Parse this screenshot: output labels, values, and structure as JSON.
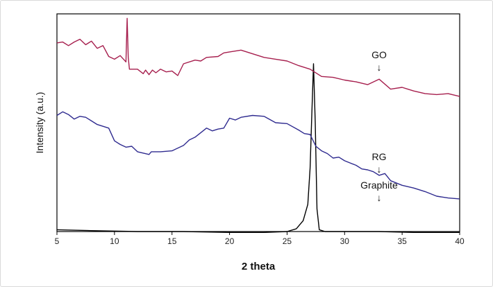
{
  "chart_data": {
    "type": "line",
    "title": "",
    "xlabel": "2 theta",
    "ylabel": "Intensity (a.u.)",
    "xlim": [
      5,
      40
    ],
    "xticks": [
      5,
      10,
      15,
      20,
      25,
      30,
      35,
      40
    ],
    "grid": false,
    "legend": "inline-annotations",
    "series": [
      {
        "name": "Graphite",
        "color": "#000000",
        "arrow": "↓",
        "label_x": 33,
        "x": [
          5,
          8,
          12,
          16,
          20,
          23,
          25,
          25.8,
          26.4,
          26.8,
          27.0,
          27.15,
          27.3,
          27.45,
          27.6,
          27.8,
          28.3,
          30,
          33,
          36,
          40
        ],
        "y": [
          0.2,
          0.1,
          0.0,
          0.0,
          -0.1,
          -0.1,
          0.0,
          0.3,
          1.2,
          3.0,
          7.0,
          13.0,
          18.5,
          12.0,
          2.5,
          0.2,
          0.0,
          0.0,
          0.0,
          -0.1,
          -0.1
        ]
      },
      {
        "name": "GO",
        "color": "#a61e4d",
        "arrow": "↓",
        "label_x": 33,
        "x": [
          5,
          5.5,
          6,
          6.5,
          7,
          7.5,
          8,
          8.5,
          9,
          9.5,
          10,
          10.5,
          11,
          11.1,
          11.2,
          11.3,
          11.45,
          12,
          12.5,
          12.7,
          13,
          13.3,
          13.6,
          14,
          14.5,
          15,
          15.5,
          16,
          17,
          17.5,
          18,
          19,
          19.5,
          20,
          21,
          22,
          23,
          24,
          25,
          26,
          27,
          28,
          29,
          30,
          31,
          32,
          33,
          34,
          35,
          36,
          37,
          38,
          39,
          40
        ],
        "y": [
          20.8,
          20.9,
          20.5,
          20.9,
          21.2,
          20.6,
          21.0,
          20.2,
          20.5,
          19.3,
          19.0,
          19.4,
          18.7,
          23.5,
          19.2,
          17.9,
          17.9,
          17.9,
          17.4,
          17.8,
          17.3,
          17.8,
          17.5,
          17.9,
          17.6,
          17.7,
          17.2,
          18.5,
          18.9,
          18.8,
          19.2,
          19.3,
          19.7,
          19.8,
          20.0,
          19.6,
          19.2,
          19.0,
          18.8,
          18.3,
          17.9,
          17.1,
          17.0,
          16.7,
          16.5,
          16.2,
          16.8,
          15.7,
          15.9,
          15.5,
          15.2,
          15.1,
          15.2,
          14.9
        ]
      },
      {
        "name": "RG",
        "color": "#2e2a8f",
        "arrow": "↓",
        "label_x": 33,
        "x": [
          5,
          5.5,
          6,
          6.5,
          7,
          7.5,
          8,
          8.5,
          9,
          9.5,
          10,
          10.5,
          11,
          11.5,
          12,
          13,
          13.2,
          14,
          15,
          16,
          16.5,
          17,
          17.5,
          18,
          18.5,
          19,
          19.5,
          20,
          20.5,
          21,
          22,
          23,
          24,
          25,
          26,
          26.5,
          27,
          27.5,
          28,
          28.5,
          29,
          29.5,
          30,
          31,
          31.5,
          32,
          32.5,
          33,
          33.5,
          34,
          35,
          36,
          37,
          38,
          39,
          40
        ],
        "y": [
          12.8,
          13.2,
          12.9,
          12.4,
          12.7,
          12.6,
          12.2,
          11.8,
          11.6,
          11.4,
          10.0,
          9.6,
          9.3,
          9.4,
          8.8,
          8.5,
          8.8,
          8.8,
          8.9,
          9.5,
          10.1,
          10.4,
          10.9,
          11.4,
          11.1,
          11.3,
          11.4,
          12.5,
          12.3,
          12.6,
          12.8,
          12.7,
          12.0,
          11.9,
          11.2,
          10.8,
          10.7,
          9.4,
          8.9,
          8.6,
          8.1,
          8.2,
          7.8,
          7.3,
          6.9,
          6.8,
          6.6,
          6.2,
          6.4,
          5.6,
          5.1,
          4.8,
          4.4,
          3.9,
          3.7,
          3.6
        ]
      }
    ]
  }
}
